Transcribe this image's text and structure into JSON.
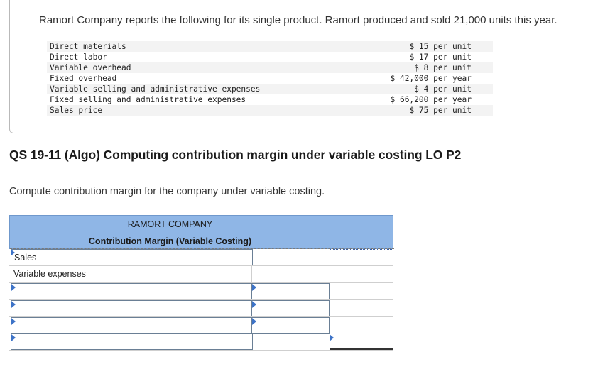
{
  "intro": "Ramort Company reports the following for its single product. Ramort produced and sold 21,000 units this year.",
  "costs": [
    {
      "label": "Direct materials",
      "value": "$ 15 per unit"
    },
    {
      "label": "Direct labor",
      "value": "$ 17 per unit"
    },
    {
      "label": "Variable overhead",
      "value": "$ 8 per unit"
    },
    {
      "label": "Fixed overhead",
      "value": "$ 42,000 per year"
    },
    {
      "label": "Variable selling and administrative expenses",
      "value": "$ 4 per unit"
    },
    {
      "label": "Fixed selling and administrative expenses",
      "value": "$ 66,200 per year"
    },
    {
      "label": "Sales price",
      "value": "$ 75 per unit"
    }
  ],
  "question_title": "QS 19-11 (Algo) Computing contribution margin under variable costing LO P2",
  "instruction": "Compute contribution margin for the company under variable costing.",
  "worksheet": {
    "company": "RAMORT COMPANY",
    "subtitle": "Contribution Margin (Variable Costing)",
    "rows": [
      {
        "label": "Sales",
        "input1": "",
        "input2": ""
      },
      {
        "label": "Variable expenses"
      },
      {
        "label": "",
        "input1": ""
      },
      {
        "label": "",
        "input1": ""
      },
      {
        "label": "",
        "input1": ""
      },
      {
        "label": "",
        "input2": ""
      }
    ]
  },
  "colors": {
    "header_bg": "#8fb6e6",
    "marker": "#3d73c7"
  }
}
